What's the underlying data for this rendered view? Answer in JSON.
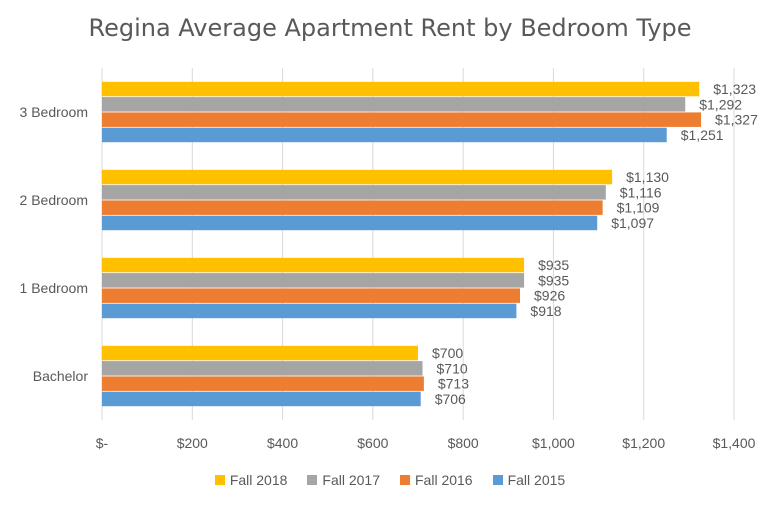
{
  "chart_data": {
    "type": "bar",
    "orientation": "horizontal",
    "title": "Regina Average Apartment Rent by Bedroom Type",
    "categories": [
      "3 Bedroom",
      "2 Bedroom",
      "1 Bedroom",
      "Bachelor"
    ],
    "series": [
      {
        "name": "Fall 2018",
        "color": "#FFC000",
        "values": [
          1323,
          1130,
          935,
          700
        ],
        "labels": [
          "$1,323",
          "$1,130",
          "$935",
          "$700"
        ]
      },
      {
        "name": "Fall 2017",
        "color": "#A5A5A5",
        "values": [
          1292,
          1116,
          935,
          710
        ],
        "labels": [
          "$1,292",
          "$1,116",
          "$935",
          "$710"
        ]
      },
      {
        "name": "Fall 2016",
        "color": "#ED7D31",
        "values": [
          1327,
          1109,
          926,
          713
        ],
        "labels": [
          "$1,327",
          "$1,109",
          "$926",
          "$713"
        ]
      },
      {
        "name": "Fall 2015",
        "color": "#5B9BD5",
        "values": [
          1251,
          1097,
          918,
          706
        ],
        "labels": [
          "$1,251",
          "$1,097",
          "$918",
          "$706"
        ]
      }
    ],
    "xlim": [
      0,
      1400
    ],
    "xticks": [
      0,
      200,
      400,
      600,
      800,
      1000,
      1200,
      1400
    ],
    "xtick_labels": [
      "$-",
      "$200",
      "$400",
      "$600",
      "$800",
      "$1,000",
      "$1,200",
      "$1,400"
    ],
    "grid": true,
    "legend_position": "bottom"
  }
}
